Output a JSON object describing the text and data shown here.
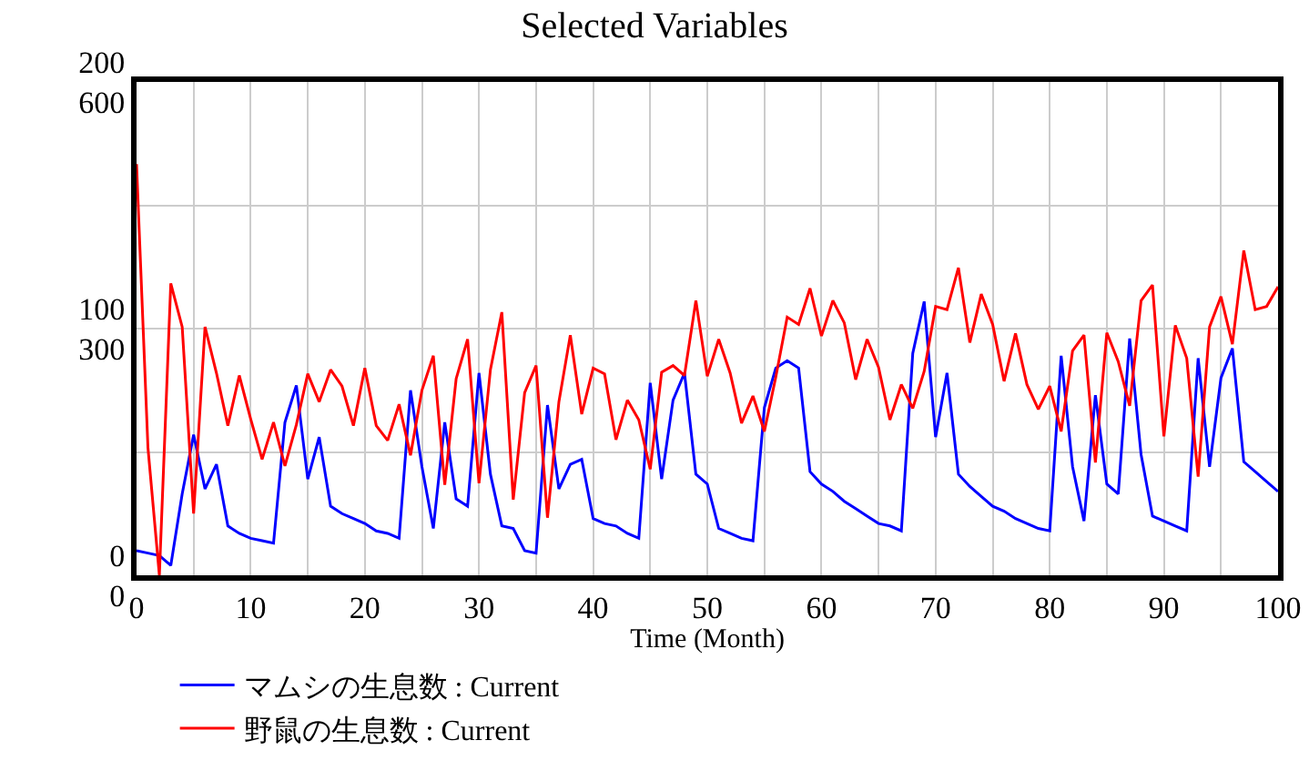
{
  "chart_data": {
    "type": "line",
    "title": "Selected Variables",
    "xlabel": "Time (Month)",
    "x": [
      0,
      1,
      2,
      3,
      4,
      5,
      6,
      7,
      8,
      9,
      10,
      11,
      12,
      13,
      14,
      15,
      16,
      17,
      18,
      19,
      20,
      21,
      22,
      23,
      24,
      25,
      26,
      27,
      28,
      29,
      30,
      31,
      32,
      33,
      34,
      35,
      36,
      37,
      38,
      39,
      40,
      41,
      42,
      43,
      44,
      45,
      46,
      47,
      48,
      49,
      50,
      51,
      52,
      53,
      54,
      55,
      56,
      57,
      58,
      59,
      60,
      61,
      62,
      63,
      64,
      65,
      66,
      67,
      68,
      69,
      70,
      71,
      72,
      73,
      74,
      75,
      76,
      77,
      78,
      79,
      80,
      81,
      82,
      83,
      84,
      85,
      86,
      87,
      88,
      89,
      90,
      91,
      92,
      93,
      94,
      95,
      96,
      97,
      98,
      99,
      100
    ],
    "series": [
      {
        "name": "マムシの生息数 : Current",
        "color": "#0000ff",
        "axis": "y",
        "values": [
          10,
          9,
          8,
          4,
          33,
          57,
          35,
          45,
          20,
          17,
          15,
          14,
          13,
          62,
          77,
          39,
          56,
          28,
          25,
          23,
          21,
          18,
          17,
          15,
          75,
          44,
          19,
          62,
          31,
          28,
          82,
          41,
          20,
          19,
          10,
          9,
          69,
          35,
          45,
          47,
          23,
          21,
          20,
          17,
          15,
          78,
          39,
          71,
          82,
          41,
          37,
          19,
          17,
          15,
          14,
          68,
          84,
          87,
          84,
          42,
          37,
          34,
          30,
          27,
          24,
          21,
          20,
          18,
          90,
          111,
          56,
          82,
          41,
          36,
          32,
          28,
          26,
          23,
          21,
          19,
          18,
          89,
          44,
          22,
          73,
          37,
          33,
          96,
          49,
          24,
          22,
          20,
          18,
          88,
          44,
          80,
          92,
          46,
          42,
          38,
          34
        ]
      },
      {
        "name": "野鼠の生息数 : Current",
        "color": "#ff0000",
        "axis": "y2",
        "values": [
          500,
          155,
          0,
          355,
          302,
          75,
          302,
          246,
          182,
          243,
          190,
          141,
          186,
          133,
          183,
          245,
          211,
          250,
          230,
          182,
          252,
          182,
          164,
          208,
          146,
          225,
          267,
          110,
          239,
          287,
          112,
          250,
          320,
          92,
          222,
          255,
          70,
          211,
          292,
          196,
          252,
          245,
          165,
          213,
          189,
          129,
          247,
          255,
          243,
          334,
          242,
          287,
          246,
          185,
          218,
          175,
          241,
          314,
          305,
          349,
          291,
          334,
          307,
          238,
          287,
          253,
          189,
          232,
          203,
          248,
          327,
          323,
          374,
          283,
          342,
          305,
          236,
          294,
          232,
          202,
          230,
          175,
          273,
          292,
          137,
          295,
          260,
          206,
          334,
          353,
          169,
          304,
          264,
          120,
          302,
          339,
          281,
          395,
          323,
          327,
          351
        ]
      }
    ],
    "xlim": [
      0,
      100
    ],
    "xticks": [
      0,
      {
        "value": 5,
        "label": null
      },
      10,
      {
        "value": 15,
        "label": null
      },
      20,
      {
        "value": 25,
        "label": null
      },
      30,
      {
        "value": 35,
        "label": null
      },
      40,
      {
        "value": 45,
        "label": null
      },
      50,
      {
        "value": 55,
        "label": null
      },
      60,
      {
        "value": 65,
        "label": null
      },
      70,
      {
        "value": 75,
        "label": null
      },
      80,
      {
        "value": 85,
        "label": null
      },
      90,
      {
        "value": 95,
        "label": null
      },
      100
    ],
    "ylim": [
      0,
      200
    ],
    "yticks": [
      0,
      {
        "value": 50,
        "label": null
      },
      100,
      {
        "value": 150,
        "label": null
      },
      200
    ],
    "y2lim": [
      0,
      600
    ],
    "y2ticks": [
      0,
      300,
      600
    ],
    "grid": true,
    "legend": "bottom"
  }
}
